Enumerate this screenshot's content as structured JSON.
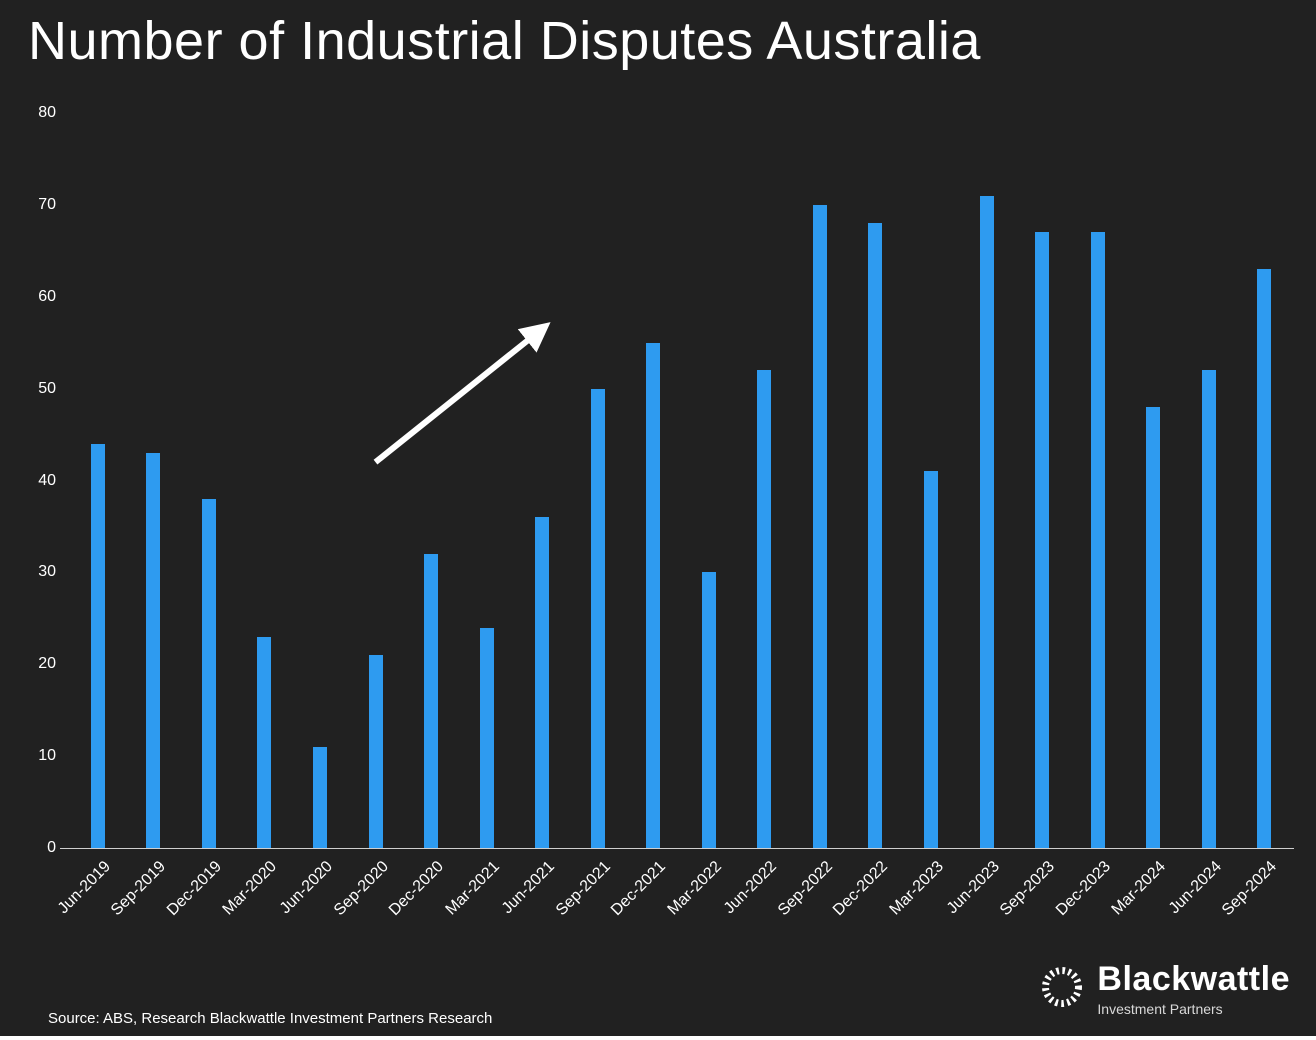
{
  "title": "Number of Industrial Disputes Australia",
  "source": "Source: ABS, Research Blackwattle Investment Partners Research",
  "logo": {
    "name": "Blackwattle",
    "subtitle": "Investment Partners",
    "icon": "segmented-ring-icon"
  },
  "colors": {
    "background": "#212121",
    "bar": "#2E9BF0",
    "text": "#ffffff",
    "axis": "#cfcfcf",
    "annotation": "#ffffff"
  },
  "chart_data": {
    "type": "bar",
    "title": "Number of Industrial Disputes Australia",
    "categories": [
      "Jun-2019",
      "Sep-2019",
      "Dec-2019",
      "Mar-2020",
      "Jun-2020",
      "Sep-2020",
      "Dec-2020",
      "Mar-2021",
      "Jun-2021",
      "Sep-2021",
      "Dec-2021",
      "Mar-2022",
      "Jun-2022",
      "Sep-2022",
      "Dec-2022",
      "Mar-2023",
      "Jun-2023",
      "Sep-2023",
      "Dec-2023",
      "Mar-2024",
      "Jun-2024",
      "Sep-2024"
    ],
    "values": [
      44,
      43,
      38,
      23,
      11,
      21,
      32,
      24,
      36,
      50,
      55,
      30,
      52,
      70,
      68,
      41,
      71,
      67,
      67,
      48,
      52,
      63
    ],
    "xlabel": "",
    "ylabel": "",
    "ylim": [
      0,
      80
    ],
    "yticks": [
      0,
      10,
      20,
      30,
      40,
      50,
      60,
      70,
      80
    ],
    "grid": false,
    "legend": "none",
    "annotation": {
      "type": "arrow",
      "description": "upward trend arrow",
      "from_category_index": 5,
      "from_value": 42,
      "to_category_index": 8,
      "to_value": 56.5
    }
  }
}
